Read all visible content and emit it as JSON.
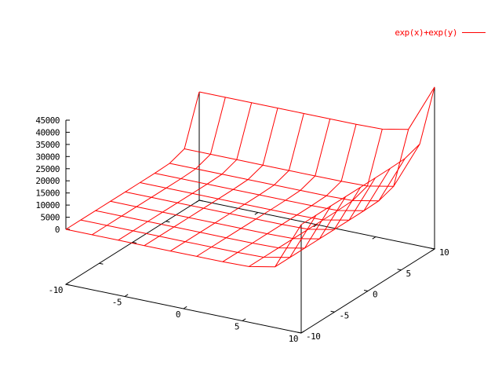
{
  "window": {
    "background_color": "#ffffff"
  },
  "chart_data": {
    "type": "surface3d_wireframe",
    "title": "",
    "legend_label": "exp(x)+exp(y)",
    "legend_position": "top-right",
    "formula": "z = exp(x) + exp(y)",
    "x_range": [
      -10,
      10
    ],
    "y_range": [
      -10,
      10
    ],
    "z_range_displayed": [
      0,
      45000
    ],
    "x_ticks": [
      -10,
      -5,
      0,
      5,
      10
    ],
    "y_ticks": [
      -10,
      -5,
      0,
      5,
      10
    ],
    "z_ticks": [
      0,
      5000,
      10000,
      15000,
      20000,
      25000,
      30000,
      35000,
      40000,
      45000
    ],
    "isosamples": [
      10,
      10
    ],
    "x_samples": [
      -10,
      -7.7778,
      -5.5556,
      -3.3333,
      -1.1111,
      1.1111,
      3.3333,
      5.5556,
      7.7778,
      10
    ],
    "y_samples": [
      -10,
      -7.7778,
      -5.5556,
      -3.3333,
      -1.1111,
      1.1111,
      3.3333,
      5.5556,
      7.7778,
      10
    ],
    "z_corner_values": {
      "x-10_y-10": 9.08e-05,
      "x10_y-10": 22026.5,
      "x-10_y10": 22026.5,
      "x10_y10": 44052.9
    },
    "series_color": "#ff0000",
    "axis_color": "#000000",
    "background_color": "#ffffff",
    "grid": false,
    "view": {
      "projection": "gnuplot-default-3d",
      "ticslevel": 0.5
    }
  }
}
